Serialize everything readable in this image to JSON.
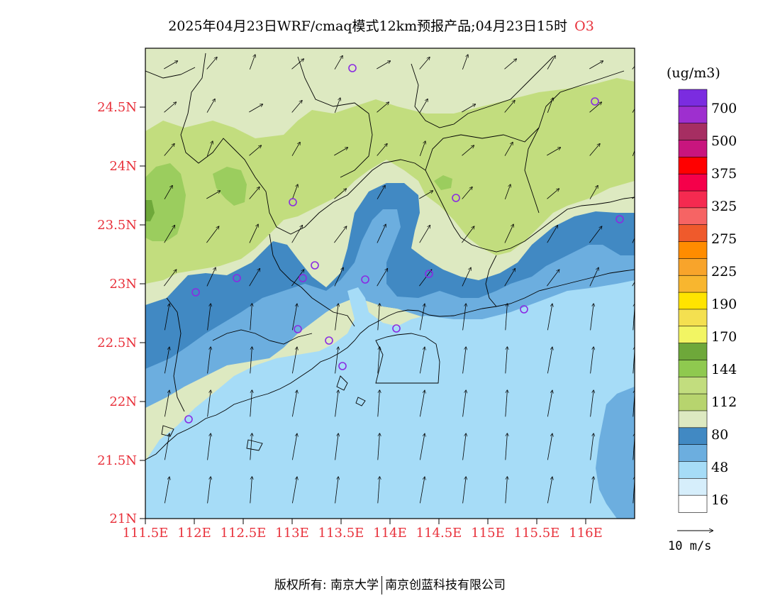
{
  "title": {
    "text": "2025年04月23日WRF/cmaq模式12km预报产品;04月23日15时",
    "species": "O3"
  },
  "colors": {
    "pale_blue": "#a6dcf7",
    "mid_blue": "#6caedf",
    "dark_blue": "#4189c3",
    "pale_green": "#dde9c1",
    "light_green": "#c2dd7e",
    "green": "#9bcd5e",
    "station_marker": "#8a2be2",
    "axis_label": "#e8303a"
  },
  "axes": {
    "lat_labels": [
      "21N",
      "21.5N",
      "22N",
      "22.5N",
      "23N",
      "23.5N",
      "24N",
      "24.5N"
    ],
    "lat_values": [
      21,
      21.5,
      22,
      22.5,
      23,
      23.5,
      24,
      24.5
    ],
    "lon_labels": [
      "111.5E",
      "112E",
      "112.5E",
      "113E",
      "113.5E",
      "114E",
      "114.5E",
      "115E",
      "115.5E",
      "116E"
    ],
    "lon_values": [
      111.5,
      112,
      112.5,
      113,
      113.5,
      114,
      114.5,
      115,
      115.5,
      116
    ],
    "lat_range": [
      21,
      25
    ],
    "lon_range": [
      111.5,
      116.5
    ]
  },
  "legend": {
    "unit": "(ug/m3)",
    "labels": [
      "700",
      "500",
      "375",
      "325",
      "275",
      "225",
      "190",
      "170",
      "144",
      "112",
      "80",
      "48",
      "16"
    ],
    "colors": [
      "#7b2ce0",
      "#9e2fcf",
      "#a62e62",
      "#c8157e",
      "#ff0000",
      "#f5004a",
      "#f52a50",
      "#f66464",
      "#ef5a2c",
      "#ff8c00",
      "#f8a42b",
      "#f8b62f",
      "#ffe400",
      "#f4e050",
      "#f2f563",
      "#6ea83a",
      "#8fc94f",
      "#c2dd7e",
      "#b7d46e",
      "#dde9c1",
      "#4189c3",
      "#6caedf",
      "#a6dcf7",
      "#d6eefb",
      "#ffffff"
    ]
  },
  "wind_reference": {
    "label": "10 m/s"
  },
  "footer": {
    "left": "版权所有: 南京大学",
    "right": "南京创蓝科技有限公司"
  }
}
